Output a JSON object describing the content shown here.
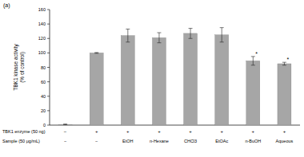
{
  "chart_data": {
    "type": "bar",
    "title": "(a)",
    "y_label": [
      "TBK1 kinase activity",
      "(% of control)"
    ],
    "categories": [
      "−",
      "−",
      "EtOH",
      "n-Hexane",
      "CHCl3",
      "EtOAc",
      "n-BuOH",
      "Aqueous"
    ],
    "category_label": "Sample (50 μg/mL)",
    "enzyme_row": {
      "label": "TBK1 enzyme (50 ng)",
      "values": [
        "−",
        "+",
        "+",
        "+",
        "+",
        "+",
        "+",
        "+"
      ]
    },
    "values": [
      1,
      100,
      124,
      121,
      127,
      125,
      89,
      85
    ],
    "errors": [
      0.5,
      0.5,
      9,
      7,
      7,
      10,
      6,
      2
    ],
    "significance": [
      null,
      null,
      null,
      null,
      null,
      null,
      "*",
      "*"
    ],
    "color": "#a6a6a6",
    "ylim": [
      0,
      160
    ],
    "yticks": [
      0,
      20,
      40,
      60,
      80,
      100,
      120,
      140,
      160
    ],
    "grid": false
  }
}
